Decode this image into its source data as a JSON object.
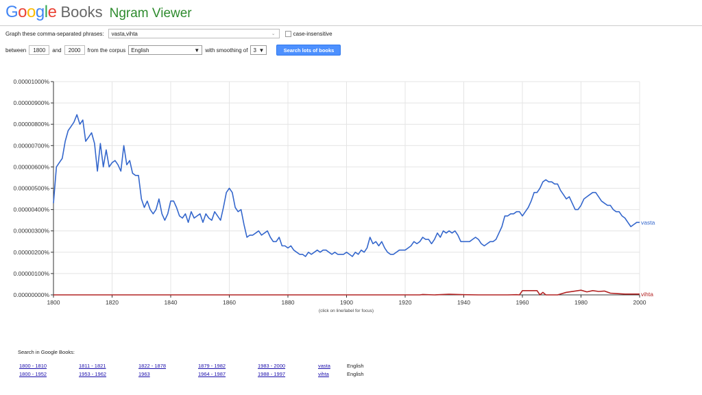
{
  "header": {
    "logo_letters": [
      {
        "ch": "G",
        "color": "#4285f4"
      },
      {
        "ch": "o",
        "color": "#ea4335"
      },
      {
        "ch": "o",
        "color": "#fbbc05"
      },
      {
        "ch": "g",
        "color": "#4285f4"
      },
      {
        "ch": "l",
        "color": "#34a853"
      },
      {
        "ch": "e",
        "color": "#ea4335"
      }
    ],
    "books": "Books",
    "title": "Ngram Viewer"
  },
  "form": {
    "phrases_label": "Graph these comma-separated phrases:",
    "phrases_value": "vasta,vihta",
    "case_label": "case-insensitive",
    "between_label": "between",
    "start_year": "1800",
    "and_label": "and",
    "end_year": "2000",
    "corpus_label": "from the corpus",
    "corpus_value": "English",
    "smoothing_label": "with smoothing of",
    "smoothing_value": "3",
    "search_button": "Search lots of books"
  },
  "chart_data": {
    "type": "line",
    "xlim": [
      1800,
      2000
    ],
    "ylim": [
      0,
      1e-05
    ],
    "x_ticks": [
      "1800",
      "1820",
      "1840",
      "1860",
      "1880",
      "1900",
      "1920",
      "1940",
      "1960",
      "1980",
      "2000"
    ],
    "y_ticks": [
      "0.00000000%",
      "0.00000100%",
      "0.00000200%",
      "0.00000300%",
      "0.00000400%",
      "0.00000500%",
      "0.00000600%",
      "0.00000700%",
      "0.00000800%",
      "0.00000900%",
      "0.00001000%"
    ],
    "grid": true,
    "focus_note": "(click on line/label for focus)",
    "series": [
      {
        "name": "vasta",
        "color": "#3366cc",
        "points": [
          [
            1800,
            4.3e-06
          ],
          [
            1801,
            6e-06
          ],
          [
            1802,
            6.2e-06
          ],
          [
            1803,
            6.4e-06
          ],
          [
            1804,
            7.2e-06
          ],
          [
            1805,
            7.7e-06
          ],
          [
            1806,
            7.9e-06
          ],
          [
            1807,
            8.1e-06
          ],
          [
            1808,
            8.45e-06
          ],
          [
            1809,
            8e-06
          ],
          [
            1810,
            8.2e-06
          ],
          [
            1811,
            7.2e-06
          ],
          [
            1812,
            7.4e-06
          ],
          [
            1813,
            7.6e-06
          ],
          [
            1814,
            7.1e-06
          ],
          [
            1815,
            5.8e-06
          ],
          [
            1816,
            7.1e-06
          ],
          [
            1817,
            6e-06
          ],
          [
            1818,
            6.8e-06
          ],
          [
            1819,
            6e-06
          ],
          [
            1820,
            6.2e-06
          ],
          [
            1821,
            6.3e-06
          ],
          [
            1822,
            6.1e-06
          ],
          [
            1823,
            5.8e-06
          ],
          [
            1824,
            7e-06
          ],
          [
            1825,
            6.1e-06
          ],
          [
            1826,
            6.3e-06
          ],
          [
            1827,
            5.7e-06
          ],
          [
            1828,
            5.6e-06
          ],
          [
            1829,
            5.6e-06
          ],
          [
            1830,
            4.5e-06
          ],
          [
            1831,
            4.1e-06
          ],
          [
            1832,
            4.4e-06
          ],
          [
            1833,
            4e-06
          ],
          [
            1834,
            3.8e-06
          ],
          [
            1835,
            4e-06
          ],
          [
            1836,
            4.5e-06
          ],
          [
            1837,
            3.8e-06
          ],
          [
            1838,
            3.5e-06
          ],
          [
            1839,
            3.8e-06
          ],
          [
            1840,
            4.4e-06
          ],
          [
            1841,
            4.4e-06
          ],
          [
            1842,
            4.1e-06
          ],
          [
            1843,
            3.7e-06
          ],
          [
            1844,
            3.6e-06
          ],
          [
            1845,
            3.8e-06
          ],
          [
            1846,
            3.4e-06
          ],
          [
            1847,
            3.9e-06
          ],
          [
            1848,
            3.6e-06
          ],
          [
            1849,
            3.7e-06
          ],
          [
            1850,
            3.8e-06
          ],
          [
            1851,
            3.4e-06
          ],
          [
            1852,
            3.8e-06
          ],
          [
            1853,
            3.6e-06
          ],
          [
            1854,
            3.5e-06
          ],
          [
            1855,
            3.9e-06
          ],
          [
            1856,
            3.7e-06
          ],
          [
            1857,
            3.5e-06
          ],
          [
            1858,
            4.1e-06
          ],
          [
            1859,
            4.8e-06
          ],
          [
            1860,
            5e-06
          ],
          [
            1861,
            4.8e-06
          ],
          [
            1862,
            4.1e-06
          ],
          [
            1863,
            3.9e-06
          ],
          [
            1864,
            4e-06
          ],
          [
            1865,
            3.3e-06
          ],
          [
            1866,
            2.7e-06
          ],
          [
            1867,
            2.8e-06
          ],
          [
            1868,
            2.8e-06
          ],
          [
            1869,
            2.9e-06
          ],
          [
            1870,
            3e-06
          ],
          [
            1871,
            2.8e-06
          ],
          [
            1872,
            2.9e-06
          ],
          [
            1873,
            3e-06
          ],
          [
            1874,
            2.7e-06
          ],
          [
            1875,
            2.5e-06
          ],
          [
            1876,
            2.5e-06
          ],
          [
            1877,
            2.7e-06
          ],
          [
            1878,
            2.3e-06
          ],
          [
            1879,
            2.3e-06
          ],
          [
            1880,
            2.2e-06
          ],
          [
            1881,
            2.3e-06
          ],
          [
            1882,
            2.1e-06
          ],
          [
            1883,
            2e-06
          ],
          [
            1884,
            1.9e-06
          ],
          [
            1885,
            1.9e-06
          ],
          [
            1886,
            1.8e-06
          ],
          [
            1887,
            2e-06
          ],
          [
            1888,
            1.9e-06
          ],
          [
            1889,
            2e-06
          ],
          [
            1890,
            2.1e-06
          ],
          [
            1891,
            2e-06
          ],
          [
            1892,
            2.1e-06
          ],
          [
            1893,
            2.1e-06
          ],
          [
            1894,
            2e-06
          ],
          [
            1895,
            1.9e-06
          ],
          [
            1896,
            2e-06
          ],
          [
            1897,
            1.9e-06
          ],
          [
            1898,
            1.9e-06
          ],
          [
            1899,
            1.9e-06
          ],
          [
            1900,
            2e-06
          ],
          [
            1901,
            1.9e-06
          ],
          [
            1902,
            1.8e-06
          ],
          [
            1903,
            2e-06
          ],
          [
            1904,
            1.9e-06
          ],
          [
            1905,
            2.1e-06
          ],
          [
            1906,
            2e-06
          ],
          [
            1907,
            2.2e-06
          ],
          [
            1908,
            2.7e-06
          ],
          [
            1909,
            2.4e-06
          ],
          [
            1910,
            2.5e-06
          ],
          [
            1911,
            2.3e-06
          ],
          [
            1912,
            2.5e-06
          ],
          [
            1913,
            2.2e-06
          ],
          [
            1914,
            2e-06
          ],
          [
            1915,
            1.9e-06
          ],
          [
            1916,
            1.9e-06
          ],
          [
            1917,
            2e-06
          ],
          [
            1918,
            2.1e-06
          ],
          [
            1919,
            2.1e-06
          ],
          [
            1920,
            2.1e-06
          ],
          [
            1921,
            2.2e-06
          ],
          [
            1922,
            2.3e-06
          ],
          [
            1923,
            2.5e-06
          ],
          [
            1924,
            2.4e-06
          ],
          [
            1925,
            2.5e-06
          ],
          [
            1926,
            2.7e-06
          ],
          [
            1927,
            2.6e-06
          ],
          [
            1928,
            2.6e-06
          ],
          [
            1929,
            2.4e-06
          ],
          [
            1930,
            2.6e-06
          ],
          [
            1931,
            2.9e-06
          ],
          [
            1932,
            2.7e-06
          ],
          [
            1933,
            3e-06
          ],
          [
            1934,
            2.9e-06
          ],
          [
            1935,
            3e-06
          ],
          [
            1936,
            2.9e-06
          ],
          [
            1937,
            3e-06
          ],
          [
            1938,
            2.8e-06
          ],
          [
            1939,
            2.5e-06
          ],
          [
            1940,
            2.5e-06
          ],
          [
            1941,
            2.5e-06
          ],
          [
            1942,
            2.5e-06
          ],
          [
            1943,
            2.6e-06
          ],
          [
            1944,
            2.7e-06
          ],
          [
            1945,
            2.6e-06
          ],
          [
            1946,
            2.4e-06
          ],
          [
            1947,
            2.3e-06
          ],
          [
            1948,
            2.4e-06
          ],
          [
            1949,
            2.5e-06
          ],
          [
            1950,
            2.5e-06
          ],
          [
            1951,
            2.6e-06
          ],
          [
            1952,
            2.9e-06
          ],
          [
            1953,
            3.2e-06
          ],
          [
            1954,
            3.7e-06
          ],
          [
            1955,
            3.7e-06
          ],
          [
            1956,
            3.8e-06
          ],
          [
            1957,
            3.8e-06
          ],
          [
            1958,
            3.9e-06
          ],
          [
            1959,
            3.9e-06
          ],
          [
            1960,
            3.7e-06
          ],
          [
            1961,
            3.9e-06
          ],
          [
            1962,
            4.1e-06
          ],
          [
            1963,
            4.4e-06
          ],
          [
            1964,
            4.8e-06
          ],
          [
            1965,
            4.8e-06
          ],
          [
            1966,
            5e-06
          ],
          [
            1967,
            5.3e-06
          ],
          [
            1968,
            5.4e-06
          ],
          [
            1969,
            5.3e-06
          ],
          [
            1970,
            5.3e-06
          ],
          [
            1971,
            5.2e-06
          ],
          [
            1972,
            5.2e-06
          ],
          [
            1973,
            4.9e-06
          ],
          [
            1974,
            4.7e-06
          ],
          [
            1975,
            4.5e-06
          ],
          [
            1976,
            4.6e-06
          ],
          [
            1977,
            4.3e-06
          ],
          [
            1978,
            4e-06
          ],
          [
            1979,
            4e-06
          ],
          [
            1980,
            4.2e-06
          ],
          [
            1981,
            4.5e-06
          ],
          [
            1982,
            4.6e-06
          ],
          [
            1983,
            4.7e-06
          ],
          [
            1984,
            4.8e-06
          ],
          [
            1985,
            4.8e-06
          ],
          [
            1986,
            4.6e-06
          ],
          [
            1987,
            4.4e-06
          ],
          [
            1988,
            4.3e-06
          ],
          [
            1989,
            4.2e-06
          ],
          [
            1990,
            4.2e-06
          ],
          [
            1991,
            4e-06
          ],
          [
            1992,
            3.9e-06
          ],
          [
            1993,
            3.9e-06
          ],
          [
            1994,
            3.7e-06
          ],
          [
            1995,
            3.6e-06
          ],
          [
            1996,
            3.4e-06
          ],
          [
            1997,
            3.2e-06
          ],
          [
            1998,
            3.3e-06
          ],
          [
            1999,
            3.4e-06
          ],
          [
            2000,
            3.4e-06
          ]
        ]
      },
      {
        "name": "vihta",
        "color": "#b22222",
        "points": [
          [
            1800,
            0.0
          ],
          [
            1925,
            0.0
          ],
          [
            1926,
            2e-08
          ],
          [
            1930,
            0.0
          ],
          [
            1935,
            3e-08
          ],
          [
            1940,
            1e-08
          ],
          [
            1945,
            0.0
          ],
          [
            1955,
            0.0
          ],
          [
            1958,
            1e-08
          ],
          [
            1959,
            0.0
          ],
          [
            1960,
            2e-07
          ],
          [
            1962,
            2e-07
          ],
          [
            1965,
            2e-07
          ],
          [
            1966,
            0.0
          ],
          [
            1967,
            1.2e-07
          ],
          [
            1968,
            0.0
          ],
          [
            1972,
            0.0
          ],
          [
            1975,
            1.2e-07
          ],
          [
            1978,
            1.8e-07
          ],
          [
            1980,
            2.2e-07
          ],
          [
            1982,
            1.4e-07
          ],
          [
            1984,
            2e-07
          ],
          [
            1986,
            1.6e-07
          ],
          [
            1988,
            1.8e-07
          ],
          [
            1990,
            8e-08
          ],
          [
            1992,
            6e-08
          ],
          [
            1995,
            4e-08
          ],
          [
            2000,
            4e-08
          ]
        ]
      }
    ]
  },
  "search_in_books": {
    "label": "Search in Google Books:",
    "rows": [
      {
        "links": [
          "1800 - 1810",
          "1811 - 1821",
          "1822 - 1878",
          "1879 - 1982",
          "1983 - 2000"
        ],
        "phrase": "vasta",
        "corpus": "English"
      },
      {
        "links": [
          "1800 - 1952",
          "1953 - 1962",
          "1963",
          "1964 - 1987",
          "1988 - 1997"
        ],
        "phrase": "vihta",
        "corpus": "English"
      }
    ]
  }
}
